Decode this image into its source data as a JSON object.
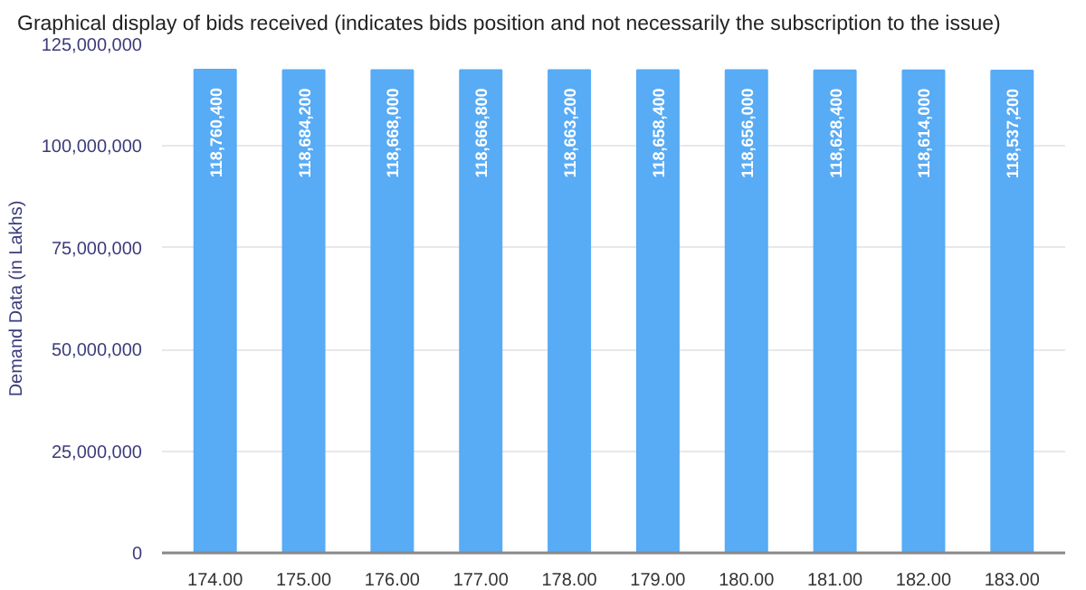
{
  "chart_data": {
    "type": "bar",
    "title": "Graphical display of bids received (indicates bids position and not necessarily the subscription to the issue)",
    "ylabel": "Demand Data (in Lakhs)",
    "categories": [
      "174.00",
      "175.00",
      "176.00",
      "177.00",
      "178.00",
      "179.00",
      "180.00",
      "181.00",
      "182.00",
      "183.00"
    ],
    "values": [
      118760400,
      118684200,
      118668000,
      118666800,
      118663200,
      118658400,
      118656000,
      118628400,
      118614000,
      118537200
    ],
    "color": "#58abf5",
    "grid": "y",
    "value_labels": [
      "118,760,400",
      "118,684,200",
      "118,668,000",
      "118,666,800",
      "118,663,200",
      "118,658,400",
      "118,656,000",
      "118,628,400",
      "118,614,000",
      "118,537,200"
    ],
    "ylim": [
      0,
      125000000
    ],
    "yticks": [
      {
        "value": 0,
        "label": "0"
      },
      {
        "value": 25000000,
        "label": "25,000,000"
      },
      {
        "value": 50000000,
        "label": "50,000,000"
      },
      {
        "value": 75000000,
        "label": "75,000,000"
      },
      {
        "value": 100000000,
        "label": "100,000,000"
      },
      {
        "value": 125000000,
        "label": "125,000,000"
      }
    ]
  }
}
